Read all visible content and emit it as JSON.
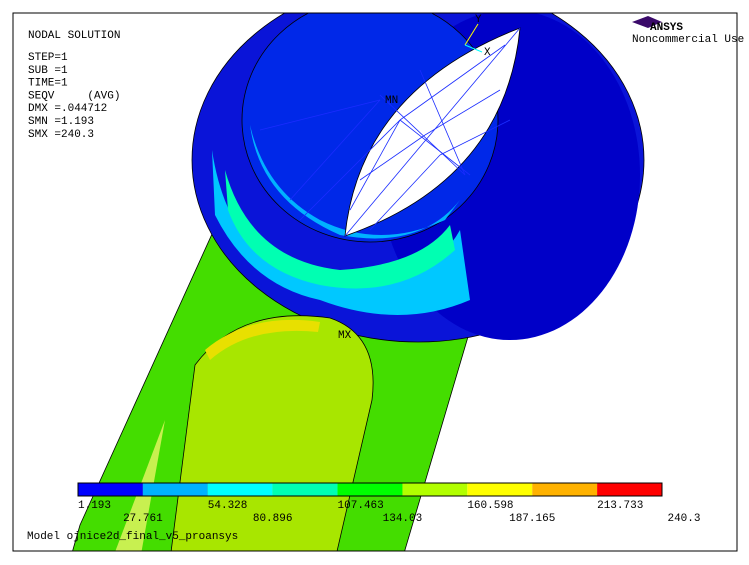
{
  "info": {
    "lines": [
      "NODAL SOLUTION",
      "STEP=1",
      "SUB =1",
      "TIME=1",
      "SEQV     (AVG)",
      "DMX =.044712",
      "SMN =1.193",
      "SMX =240.3"
    ]
  },
  "logo": {
    "brand": "ANSYS",
    "note": "Noncommercial Use Only"
  },
  "triad": {
    "x": "X",
    "y": "Y"
  },
  "markers": {
    "min": "MN",
    "max": "MX"
  },
  "legend": {
    "colors": [
      "#0000ff",
      "#00b2ff",
      "#00ffff",
      "#00ffb2",
      "#00ff00",
      "#b2ff00",
      "#ffff00",
      "#ffb200",
      "#ff0000"
    ],
    "labels": [
      "1.193",
      "27.761",
      "54.328",
      "80.896",
      "107.463",
      "134.03",
      "160.598",
      "187.165",
      "213.733",
      "240.3"
    ]
  },
  "model": "Model ojnice2d_final_v5_proansys"
}
